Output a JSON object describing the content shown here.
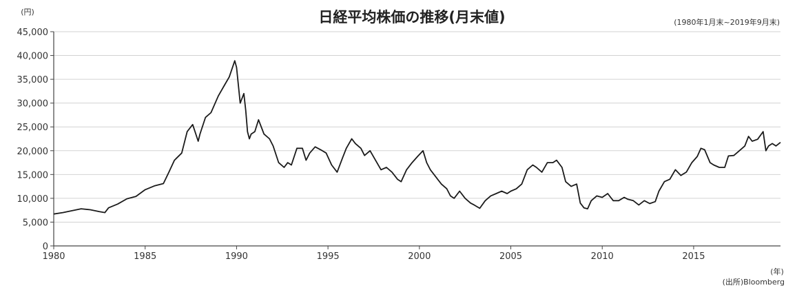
{
  "chart_data": {
    "type": "line",
    "title": "日経平均株価の推移(月末値)",
    "period_note": "(1980年1月末~2019年9月末)",
    "y_unit": "(円)",
    "x_unit": "(年)",
    "source": "(出所)Bloomberg",
    "ylim": [
      0,
      45000
    ],
    "xlim": [
      1980,
      2019.75
    ],
    "grid": true,
    "y_ticks": [
      0,
      5000,
      10000,
      15000,
      20000,
      25000,
      30000,
      35000,
      40000,
      45000
    ],
    "y_tick_labels": [
      "0",
      "5,000",
      "10,000",
      "15,000",
      "20,000",
      "25,000",
      "30,000",
      "35,000",
      "40,000",
      "45,000"
    ],
    "x_ticks": [
      1980,
      1985,
      1990,
      1995,
      2000,
      2005,
      2010,
      2015
    ],
    "x_tick_labels": [
      "1980",
      "1985",
      "1990",
      "1995",
      "2000",
      "2005",
      "2010",
      "2015"
    ],
    "line_color": "#1a1a1a",
    "series": [
      {
        "x": [
          1980.0,
          1980.5,
          1981.0,
          1981.5,
          1982.0,
          1982.5,
          1982.8,
          1983.0,
          1983.5,
          1984.0,
          1984.5,
          1985.0,
          1985.5,
          1986.0,
          1986.3,
          1986.6,
          1987.0,
          1987.3,
          1987.6,
          1987.9,
          1988.0,
          1988.3,
          1988.6,
          1989.0,
          1989.3,
          1989.6,
          1989.9,
          1990.0,
          1990.2,
          1990.4,
          1990.5,
          1990.6,
          1990.7,
          1990.8,
          1991.0,
          1991.2,
          1991.5,
          1991.8,
          1992.0,
          1992.3,
          1992.6,
          1992.8,
          1993.0,
          1993.3,
          1993.6,
          1993.8,
          1994.0,
          1994.3,
          1994.6,
          1994.9,
          1995.2,
          1995.5,
          1995.8,
          1996.0,
          1996.3,
          1996.5,
          1996.8,
          1997.0,
          1997.3,
          1997.6,
          1997.9,
          1998.2,
          1998.5,
          1998.8,
          1999.0,
          1999.3,
          1999.6,
          1999.9,
          2000.2,
          2000.4,
          2000.6,
          2000.9,
          2001.2,
          2001.5,
          2001.7,
          2001.9,
          2002.2,
          2002.5,
          2002.8,
          2003.0,
          2003.3,
          2003.6,
          2003.9,
          2004.2,
          2004.5,
          2004.8,
          2005.0,
          2005.3,
          2005.6,
          2005.9,
          2006.2,
          2006.4,
          2006.7,
          2007.0,
          2007.3,
          2007.5,
          2007.8,
          2008.0,
          2008.3,
          2008.6,
          2008.8,
          2009.0,
          2009.2,
          2009.4,
          2009.7,
          2010.0,
          2010.3,
          2010.6,
          2010.9,
          2011.2,
          2011.4,
          2011.7,
          2012.0,
          2012.3,
          2012.6,
          2012.9,
          2013.1,
          2013.4,
          2013.7,
          2014.0,
          2014.3,
          2014.6,
          2014.9,
          2015.2,
          2015.4,
          2015.6,
          2015.9,
          2016.1,
          2016.4,
          2016.7,
          2016.9,
          2017.2,
          2017.5,
          2017.8,
          2018.0,
          2018.2,
          2018.5,
          2018.8,
          2018.95,
          2019.1,
          2019.3,
          2019.5,
          2019.75
        ],
        "values": [
          6700,
          7000,
          7400,
          7800,
          7600,
          7200,
          7000,
          8000,
          8800,
          9900,
          10400,
          11800,
          12600,
          13100,
          15500,
          18000,
          19500,
          24000,
          25500,
          22000,
          23500,
          27000,
          28000,
          31500,
          33500,
          35500,
          38900,
          37500,
          30000,
          32000,
          28500,
          24000,
          22500,
          23500,
          24000,
          26500,
          23500,
          22500,
          21000,
          17500,
          16500,
          17500,
          17000,
          20500,
          20500,
          18000,
          19500,
          20800,
          20200,
          19500,
          17000,
          15500,
          18500,
          20500,
          22500,
          21500,
          20500,
          19000,
          20000,
          18000,
          16000,
          16500,
          15500,
          14000,
          13500,
          16000,
          17500,
          18800,
          20000,
          17500,
          16000,
          14500,
          13000,
          12000,
          10500,
          10000,
          11500,
          10000,
          9000,
          8600,
          7900,
          9500,
          10500,
          11000,
          11500,
          11000,
          11500,
          12000,
          13000,
          16000,
          17000,
          16500,
          15500,
          17500,
          17500,
          18000,
          16500,
          13500,
          12500,
          13000,
          9000,
          8000,
          7800,
          9500,
          10500,
          10200,
          11000,
          9500,
          9500,
          10200,
          9800,
          9500,
          8600,
          9500,
          8900,
          9300,
          11500,
          13500,
          14000,
          16000,
          14800,
          15500,
          17500,
          18800,
          20500,
          20200,
          17500,
          17000,
          16500,
          16500,
          18900,
          19000,
          20000,
          21000,
          23000,
          22000,
          22400,
          24000,
          20000,
          21000,
          21500,
          21000,
          21750
        ]
      }
    ]
  }
}
